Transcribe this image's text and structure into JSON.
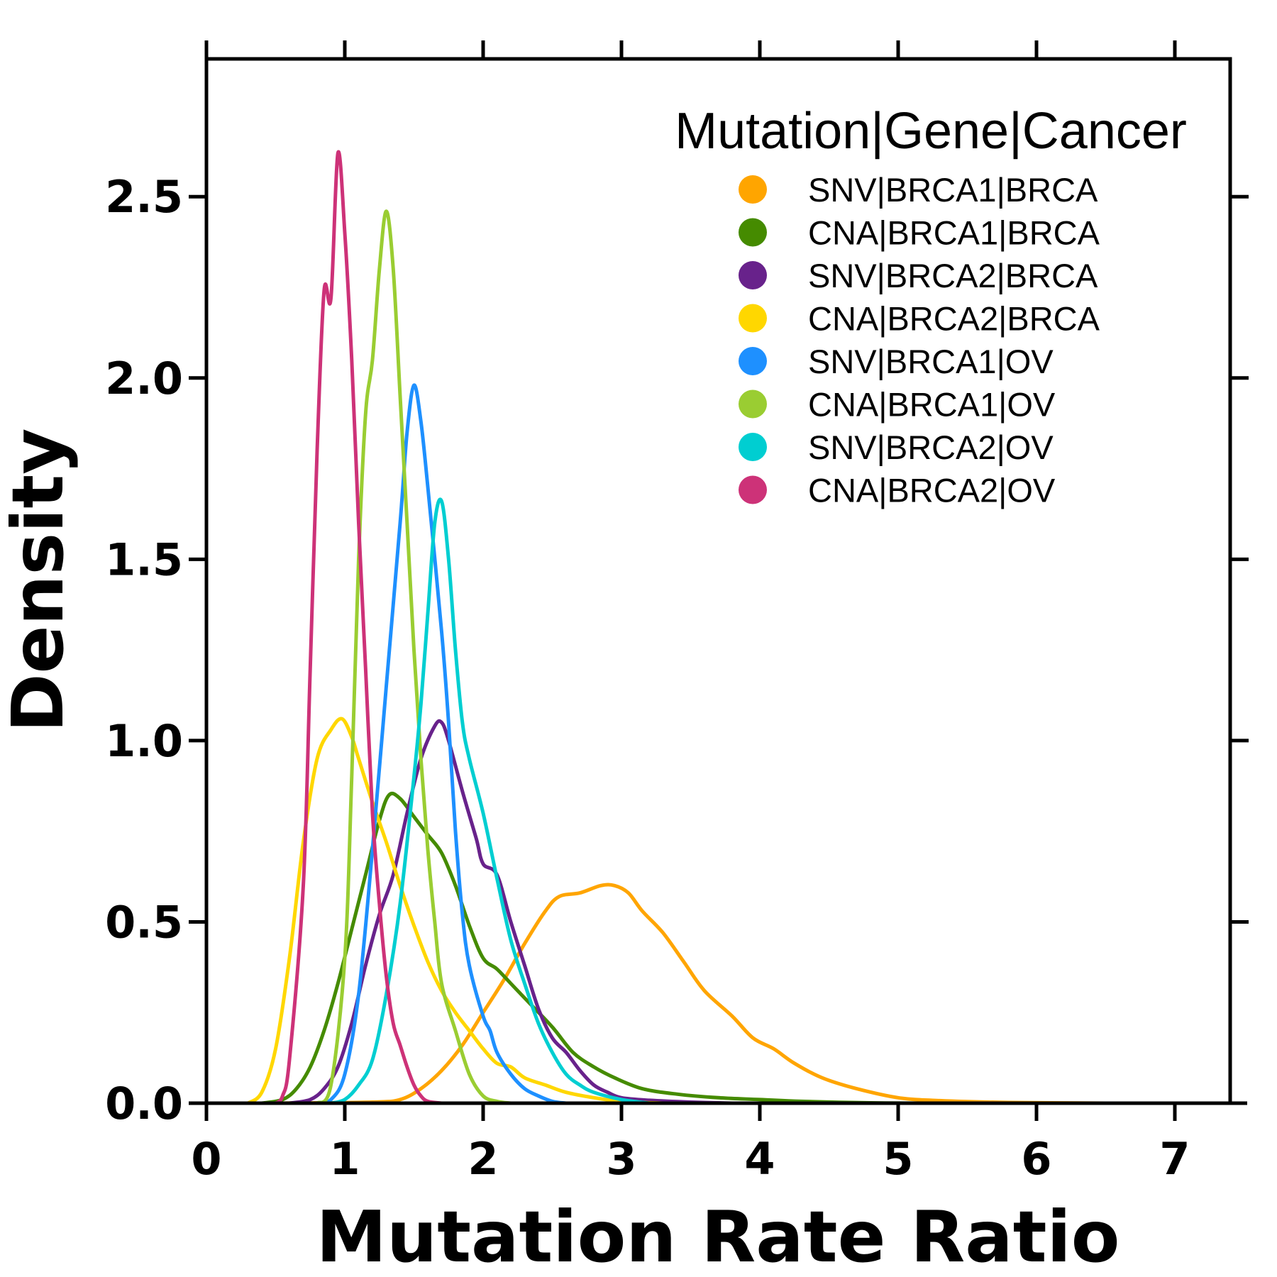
{
  "chart_data": {
    "type": "line",
    "title": "",
    "xlabel": "Mutation Rate Ratio",
    "ylabel": "Density",
    "xlim": [
      0,
      7.4
    ],
    "ylim": [
      0,
      2.88
    ],
    "x_ticks": [
      "0",
      "1",
      "2",
      "3",
      "4",
      "5",
      "6",
      "7"
    ],
    "y_ticks": [
      "0.0",
      "0.5",
      "1.0",
      "1.5",
      "2.0",
      "2.5"
    ],
    "grid": false,
    "legend": {
      "title": "Mutation|Gene|Cancer",
      "placement": "top-right"
    },
    "series": [
      {
        "name": "SNV|BRCA1|BRCA",
        "color": "#FFA500",
        "points": [
          [
            0.5,
            0
          ],
          [
            1.2,
            0.003
          ],
          [
            1.4,
            0.01
          ],
          [
            1.55,
            0.04
          ],
          [
            1.7,
            0.09
          ],
          [
            1.85,
            0.16
          ],
          [
            2.0,
            0.25
          ],
          [
            2.15,
            0.34
          ],
          [
            2.3,
            0.44
          ],
          [
            2.45,
            0.53
          ],
          [
            2.55,
            0.57
          ],
          [
            2.7,
            0.58
          ],
          [
            2.85,
            0.6
          ],
          [
            2.95,
            0.6
          ],
          [
            3.05,
            0.58
          ],
          [
            3.15,
            0.53
          ],
          [
            3.3,
            0.47
          ],
          [
            3.45,
            0.39
          ],
          [
            3.6,
            0.31
          ],
          [
            3.8,
            0.24
          ],
          [
            3.95,
            0.18
          ],
          [
            4.1,
            0.15
          ],
          [
            4.25,
            0.11
          ],
          [
            4.45,
            0.07
          ],
          [
            4.7,
            0.04
          ],
          [
            5.0,
            0.015
          ],
          [
            5.3,
            0.007
          ],
          [
            5.8,
            0.002
          ],
          [
            6.5,
            0
          ]
        ]
      },
      {
        "name": "CNA|BRCA1|BRCA",
        "color": "#458B00",
        "points": [
          [
            0.4,
            0
          ],
          [
            0.55,
            0.01
          ],
          [
            0.65,
            0.04
          ],
          [
            0.75,
            0.1
          ],
          [
            0.85,
            0.2
          ],
          [
            0.95,
            0.33
          ],
          [
            1.05,
            0.48
          ],
          [
            1.15,
            0.63
          ],
          [
            1.25,
            0.78
          ],
          [
            1.32,
            0.85
          ],
          [
            1.4,
            0.84
          ],
          [
            1.5,
            0.79
          ],
          [
            1.6,
            0.74
          ],
          [
            1.7,
            0.69
          ],
          [
            1.8,
            0.6
          ],
          [
            1.9,
            0.49
          ],
          [
            2.0,
            0.4
          ],
          [
            2.1,
            0.37
          ],
          [
            2.2,
            0.33
          ],
          [
            2.35,
            0.27
          ],
          [
            2.5,
            0.21
          ],
          [
            2.65,
            0.14
          ],
          [
            2.8,
            0.1
          ],
          [
            2.95,
            0.07
          ],
          [
            3.15,
            0.04
          ],
          [
            3.4,
            0.025
          ],
          [
            3.7,
            0.015
          ],
          [
            4.0,
            0.01
          ],
          [
            4.3,
            0.005
          ],
          [
            4.8,
            0.001
          ],
          [
            5.2,
            0
          ]
        ]
      },
      {
        "name": "SNV|BRCA2|BRCA",
        "color": "#68228B",
        "points": [
          [
            0.6,
            0
          ],
          [
            0.75,
            0.01
          ],
          [
            0.85,
            0.04
          ],
          [
            0.95,
            0.1
          ],
          [
            1.05,
            0.22
          ],
          [
            1.15,
            0.38
          ],
          [
            1.25,
            0.52
          ],
          [
            1.35,
            0.63
          ],
          [
            1.45,
            0.8
          ],
          [
            1.55,
            0.95
          ],
          [
            1.65,
            1.04
          ],
          [
            1.7,
            1.05
          ],
          [
            1.75,
            1.0
          ],
          [
            1.85,
            0.86
          ],
          [
            1.95,
            0.73
          ],
          [
            2.0,
            0.66
          ],
          [
            2.1,
            0.63
          ],
          [
            2.2,
            0.5
          ],
          [
            2.3,
            0.38
          ],
          [
            2.4,
            0.26
          ],
          [
            2.5,
            0.18
          ],
          [
            2.6,
            0.14
          ],
          [
            2.7,
            0.09
          ],
          [
            2.8,
            0.05
          ],
          [
            2.9,
            0.03
          ],
          [
            3.0,
            0.015
          ],
          [
            3.2,
            0.008
          ],
          [
            3.5,
            0.003
          ],
          [
            3.8,
            0
          ]
        ]
      },
      {
        "name": "CNA|BRCA2|BRCA",
        "color": "#FFD700",
        "points": [
          [
            0.3,
            0
          ],
          [
            0.4,
            0.03
          ],
          [
            0.5,
            0.15
          ],
          [
            0.6,
            0.4
          ],
          [
            0.7,
            0.72
          ],
          [
            0.8,
            0.95
          ],
          [
            0.9,
            1.03
          ],
          [
            0.98,
            1.06
          ],
          [
            1.05,
            1.01
          ],
          [
            1.1,
            0.95
          ],
          [
            1.2,
            0.83
          ],
          [
            1.3,
            0.72
          ],
          [
            1.4,
            0.6
          ],
          [
            1.5,
            0.49
          ],
          [
            1.6,
            0.39
          ],
          [
            1.7,
            0.31
          ],
          [
            1.8,
            0.25
          ],
          [
            1.9,
            0.2
          ],
          [
            2.0,
            0.15
          ],
          [
            2.1,
            0.11
          ],
          [
            2.2,
            0.1
          ],
          [
            2.3,
            0.07
          ],
          [
            2.45,
            0.05
          ],
          [
            2.6,
            0.03
          ],
          [
            2.8,
            0.015
          ],
          [
            3.0,
            0.005
          ],
          [
            3.3,
            0
          ]
        ]
      },
      {
        "name": "SNV|BRCA1|OV",
        "color": "#1E90FF",
        "points": [
          [
            0.8,
            0
          ],
          [
            0.9,
            0.01
          ],
          [
            1.0,
            0.08
          ],
          [
            1.1,
            0.3
          ],
          [
            1.2,
            0.7
          ],
          [
            1.3,
            1.15
          ],
          [
            1.4,
            1.6
          ],
          [
            1.45,
            1.85
          ],
          [
            1.5,
            1.98
          ],
          [
            1.55,
            1.88
          ],
          [
            1.6,
            1.7
          ],
          [
            1.7,
            1.3
          ],
          [
            1.75,
            1.05
          ],
          [
            1.8,
            0.75
          ],
          [
            1.85,
            0.52
          ],
          [
            1.9,
            0.38
          ],
          [
            2.0,
            0.24
          ],
          [
            2.05,
            0.2
          ],
          [
            2.1,
            0.14
          ],
          [
            2.2,
            0.08
          ],
          [
            2.3,
            0.04
          ],
          [
            2.4,
            0.02
          ],
          [
            2.5,
            0.005
          ],
          [
            2.6,
            0
          ]
        ]
      },
      {
        "name": "CNA|BRCA1|OV",
        "color": "#9ACD32",
        "points": [
          [
            0.8,
            0
          ],
          [
            0.9,
            0.05
          ],
          [
            1.0,
            0.4
          ],
          [
            1.05,
            0.9
          ],
          [
            1.1,
            1.5
          ],
          [
            1.15,
            1.9
          ],
          [
            1.2,
            2.05
          ],
          [
            1.25,
            2.3
          ],
          [
            1.3,
            2.46
          ],
          [
            1.35,
            2.3
          ],
          [
            1.4,
            1.95
          ],
          [
            1.45,
            1.6
          ],
          [
            1.5,
            1.25
          ],
          [
            1.55,
            0.95
          ],
          [
            1.6,
            0.7
          ],
          [
            1.65,
            0.5
          ],
          [
            1.7,
            0.33
          ],
          [
            1.8,
            0.2
          ],
          [
            1.9,
            0.08
          ],
          [
            2.0,
            0.02
          ],
          [
            2.1,
            0.005
          ],
          [
            2.2,
            0
          ]
        ]
      },
      {
        "name": "SNV|BRCA2|OV",
        "color": "#00CED1",
        "points": [
          [
            0.9,
            0
          ],
          [
            1.0,
            0.01
          ],
          [
            1.1,
            0.05
          ],
          [
            1.2,
            0.12
          ],
          [
            1.3,
            0.3
          ],
          [
            1.4,
            0.55
          ],
          [
            1.5,
            0.9
          ],
          [
            1.55,
            1.1
          ],
          [
            1.6,
            1.35
          ],
          [
            1.65,
            1.6
          ],
          [
            1.7,
            1.66
          ],
          [
            1.75,
            1.5
          ],
          [
            1.8,
            1.25
          ],
          [
            1.85,
            1.05
          ],
          [
            1.9,
            0.95
          ],
          [
            2.0,
            0.8
          ],
          [
            2.1,
            0.62
          ],
          [
            2.2,
            0.45
          ],
          [
            2.3,
            0.33
          ],
          [
            2.4,
            0.22
          ],
          [
            2.5,
            0.14
          ],
          [
            2.6,
            0.08
          ],
          [
            2.7,
            0.05
          ],
          [
            2.8,
            0.03
          ],
          [
            3.0,
            0.01
          ],
          [
            3.2,
            0
          ]
        ]
      },
      {
        "name": "CNA|BRCA2|OV",
        "color": "#CD3278",
        "points": [
          [
            0.5,
            0
          ],
          [
            0.55,
            0.02
          ],
          [
            0.6,
            0.12
          ],
          [
            0.7,
            0.6
          ],
          [
            0.75,
            1.2
          ],
          [
            0.8,
            1.8
          ],
          [
            0.85,
            2.24
          ],
          [
            0.9,
            2.22
          ],
          [
            0.95,
            2.62
          ],
          [
            1.0,
            2.4
          ],
          [
            1.05,
            2.05
          ],
          [
            1.1,
            1.6
          ],
          [
            1.15,
            1.2
          ],
          [
            1.2,
            0.8
          ],
          [
            1.25,
            0.55
          ],
          [
            1.3,
            0.35
          ],
          [
            1.35,
            0.22
          ],
          [
            1.4,
            0.16
          ],
          [
            1.45,
            0.1
          ],
          [
            1.5,
            0.05
          ],
          [
            1.55,
            0.02
          ],
          [
            1.6,
            0.005
          ],
          [
            1.7,
            0
          ]
        ]
      }
    ]
  }
}
